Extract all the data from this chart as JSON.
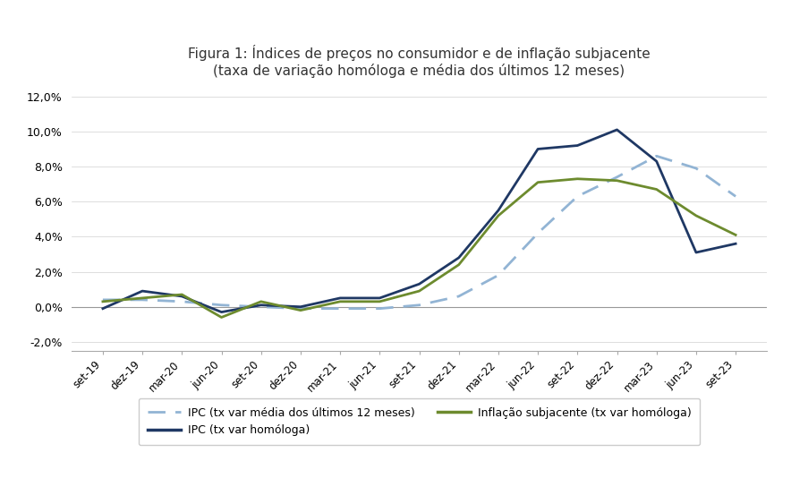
{
  "title_prefix": "Figura 1: ",
  "title_main": "Índices de preços no consumidor e de inflação subjacente",
  "title_sub": "(taxa de variação homóloga e média dos últimos 12 meses)",
  "x_labels": [
    "set-19",
    "dez-19",
    "mar-20",
    "jun-20",
    "set-20",
    "dez-20",
    "mar-21",
    "jun-21",
    "set-21",
    "dez-21",
    "mar-22",
    "jun-22",
    "set-22",
    "dez-22",
    "mar-23",
    "jun-23",
    "set-23"
  ],
  "ylim": [
    -0.025,
    0.125
  ],
  "yticks": [
    -0.02,
    0.0,
    0.02,
    0.04,
    0.06,
    0.08,
    0.1,
    0.12
  ],
  "ipc_homologa": [
    -0.001,
    0.009,
    0.006,
    -0.003,
    0.001,
    0.0,
    0.005,
    0.005,
    0.013,
    0.028,
    0.055,
    0.09,
    0.092,
    0.101,
    0.083,
    0.031,
    0.036
  ],
  "ipc_media12": [
    0.004,
    0.004,
    0.003,
    0.001,
    0.0,
    -0.001,
    -0.001,
    -0.001,
    0.001,
    0.006,
    0.018,
    0.042,
    0.063,
    0.074,
    0.086,
    0.079,
    0.063
  ],
  "inflacao_subjacente": [
    0.003,
    0.005,
    0.007,
    -0.006,
    0.003,
    -0.002,
    0.003,
    0.003,
    0.009,
    0.024,
    0.052,
    0.071,
    0.073,
    0.072,
    0.067,
    0.052,
    0.041
  ],
  "color_ipc_homologa": "#1f3864",
  "color_ipc_media12": "#92b4d4",
  "color_inflacao_subjacente": "#6d8b2e",
  "legend_ipc_media12": "IPC (tx var média dos últimos 12 meses)",
  "legend_ipc_homologa": "IPC (tx var homóloga)",
  "legend_inflacao_subjacente": "Inflação subjacente (tx var homóloga)",
  "background_color": "#ffffff",
  "grid_color": "#d0d0d0"
}
